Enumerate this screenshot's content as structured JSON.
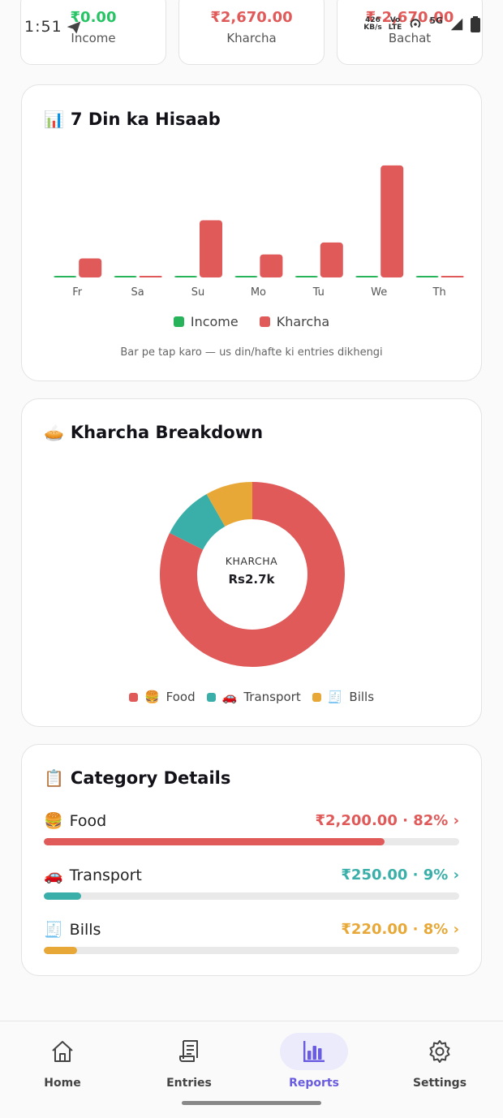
{
  "status_bar": {
    "time": "1:51",
    "net_speed_value": "426",
    "net_speed_unit": "KB/s",
    "volte_top": "Vo",
    "volte_bottom": "LTE",
    "network": "5G"
  },
  "summary": {
    "income": {
      "amount": "₹0.00",
      "label": "Income"
    },
    "kharcha": {
      "amount": "₹2,670.00",
      "label": "Kharcha"
    },
    "bachat": {
      "amount": "₹-2,670.00",
      "label": "Bachat"
    }
  },
  "week_card": {
    "icon": "📊",
    "title": "7 Din ka Hisaab",
    "legend_income": "Income",
    "legend_kharcha": "Kharcha",
    "hint": "Bar pe tap karo — us din/hafte ki entries dikhengi"
  },
  "chart_data": [
    {
      "type": "bar",
      "categories": [
        "Fr",
        "Sa",
        "Su",
        "Mo",
        "Tu",
        "We",
        "Th"
      ],
      "series": [
        {
          "name": "Income",
          "values": [
            0,
            0,
            0,
            0,
            0,
            0,
            0
          ]
        },
        {
          "name": "Kharcha",
          "values": [
            240,
            10,
            720,
            290,
            440,
            1410,
            10
          ]
        }
      ],
      "ylim": [
        0,
        1450
      ],
      "legend": "bottom",
      "grid": false
    },
    {
      "type": "pie",
      "categories": [
        "🍔 Food",
        "🚗 Transport",
        "🧾 Bills"
      ],
      "values": [
        2200,
        250,
        220
      ],
      "center_label": "KHARCHA",
      "center_value": "Rs2.7k",
      "legend": "bottom"
    }
  ],
  "colors": {
    "income": "#27b35a",
    "kharcha": "#e05a5a",
    "food": "#e05a5a",
    "transport": "#3aafa9",
    "bills": "#e8a838",
    "accent": "#6a5ce0"
  },
  "breakdown_card": {
    "icon": "🥧",
    "title": "Kharcha Breakdown",
    "center_label": "KHARCHA",
    "center_value": "Rs2.7k",
    "legend": [
      {
        "icon": "🍔",
        "label": "Food"
      },
      {
        "icon": "🚗",
        "label": "Transport"
      },
      {
        "icon": "🧾",
        "label": "Bills"
      }
    ]
  },
  "details_card": {
    "icon": "📋",
    "title": "Category Details",
    "items": [
      {
        "icon": "🍔",
        "name": "Food",
        "amount": "₹2,200.00 · 82% ›",
        "percent": 82,
        "color": "#e05a5a"
      },
      {
        "icon": "🚗",
        "name": "Transport",
        "amount": "₹250.00 · 9% ›",
        "percent": 9,
        "color": "#3aafa9"
      },
      {
        "icon": "🧾",
        "name": "Bills",
        "amount": "₹220.00 · 8% ›",
        "percent": 8,
        "color": "#e8a838"
      }
    ]
  },
  "nav": {
    "home": "Home",
    "entries": "Entries",
    "reports": "Reports",
    "settings": "Settings",
    "active": "reports"
  }
}
